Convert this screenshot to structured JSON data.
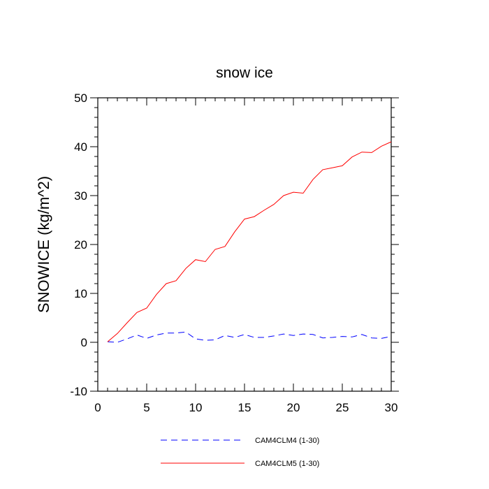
{
  "chart_data": {
    "type": "line",
    "title": "snow ice",
    "xlabel": "",
    "ylabel": "SNOWICE  (kg/m^2)",
    "xlim": [
      0,
      30
    ],
    "ylim": [
      -10,
      50
    ],
    "x_ticks": [
      "0",
      "5",
      "10",
      "15",
      "20",
      "25",
      "30"
    ],
    "y_ticks": [
      "-10",
      "0",
      "10",
      "20",
      "30",
      "40",
      "50"
    ],
    "grid": false,
    "legend_position": "bottom",
    "series": [
      {
        "name": "CAM4CLM4 (1-30)",
        "color": "#0000ff",
        "style": "dashed",
        "x": [
          1,
          2,
          3,
          4,
          5,
          6,
          7,
          8,
          9,
          10,
          11,
          12,
          13,
          14,
          15,
          16,
          17,
          18,
          19,
          20,
          21,
          22,
          23,
          24,
          25,
          26,
          27,
          28,
          29,
          30
        ],
        "values": [
          0.1,
          0.0,
          0.7,
          1.5,
          0.8,
          1.5,
          1.9,
          1.9,
          2.1,
          0.7,
          0.4,
          0.5,
          1.4,
          1.0,
          1.6,
          1.0,
          1.0,
          1.3,
          1.7,
          1.4,
          1.7,
          1.6,
          0.9,
          1.0,
          1.2,
          1.1,
          1.6,
          0.9,
          0.8,
          1.2
        ]
      },
      {
        "name": "CAM4CLM5 (1-30)",
        "color": "#ff0000",
        "style": "solid",
        "x": [
          1,
          2,
          3,
          4,
          5,
          6,
          7,
          8,
          9,
          10,
          11,
          12,
          13,
          14,
          15,
          16,
          17,
          18,
          19,
          20,
          21,
          22,
          23,
          24,
          25,
          26,
          27,
          28,
          29,
          30
        ],
        "values": [
          0.1,
          1.8,
          4.0,
          6.1,
          7.0,
          9.8,
          12.0,
          12.6,
          15.1,
          16.9,
          16.5,
          19.0,
          19.6,
          22.6,
          25.2,
          25.7,
          27.0,
          28.2,
          30.0,
          30.7,
          30.5,
          33.3,
          35.3,
          35.7,
          36.1,
          37.9,
          38.9,
          38.8,
          40.1,
          41.0
        ]
      }
    ]
  }
}
